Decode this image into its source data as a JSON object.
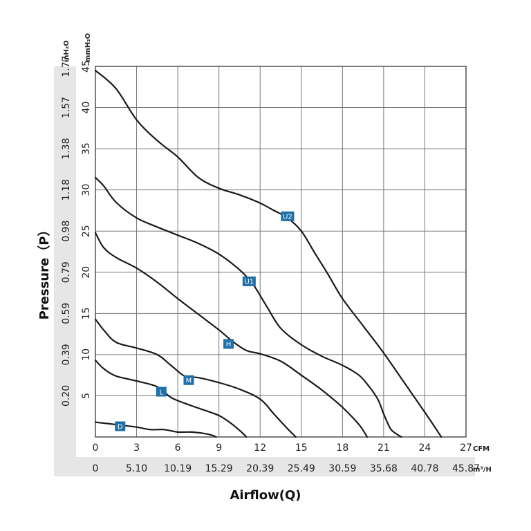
{
  "chart_data": {
    "type": "line",
    "xlabel": "Airflow(Q)",
    "ylabel": "Pressure（P）",
    "x_unit_primary": "CFM",
    "x_unit_secondary": "m³/H",
    "y_unit_primary": "mmH₂O",
    "y_unit_secondary": "inH₂O",
    "xlim": [
      0,
      27
    ],
    "ylim": [
      0,
      45
    ],
    "x_ticks": [
      "0",
      "3",
      "6",
      "9",
      "12",
      "15",
      "18",
      "21",
      "24",
      "27"
    ],
    "x_ticks_secondary": [
      "0",
      "5.10",
      "10.19",
      "15.29",
      "20.39",
      "25.49",
      "30.59",
      "35.68",
      "40.78",
      "45.87"
    ],
    "y_ticks": [
      "5",
      "10",
      "15",
      "20",
      "25",
      "30",
      "35",
      "40",
      "45"
    ],
    "y_ticks_secondary": [
      "0.20",
      "0.39",
      "0.59",
      "0.79",
      "0.98",
      "1.18",
      "1.38",
      "1.57",
      "1.77"
    ],
    "grid": true,
    "colors": {
      "curve": "#1a1a1a",
      "label_bg": "#1f6fa8",
      "band_bg": "#e6e6e6"
    },
    "series": [
      {
        "name": "U2",
        "label_at": [
          14.0,
          26.8
        ],
        "points": [
          [
            0,
            44.5
          ],
          [
            1.5,
            42.3
          ],
          [
            3,
            38.5
          ],
          [
            4.5,
            36.0
          ],
          [
            6,
            34.0
          ],
          [
            7.5,
            31.5
          ],
          [
            9,
            30.2
          ],
          [
            10.5,
            29.4
          ],
          [
            12,
            28.4
          ],
          [
            13,
            27.5
          ],
          [
            14,
            26.6
          ],
          [
            15,
            25.0
          ],
          [
            16,
            22.3
          ],
          [
            17,
            19.6
          ],
          [
            18,
            16.8
          ],
          [
            19.5,
            13.5
          ],
          [
            21,
            10.2
          ],
          [
            22.5,
            6.6
          ],
          [
            24,
            3.0
          ],
          [
            25.2,
            0
          ]
        ]
      },
      {
        "name": "U1",
        "label_at": [
          11.2,
          18.9
        ],
        "points": [
          [
            0,
            31.5
          ],
          [
            0.6,
            30.5
          ],
          [
            1.5,
            28.5
          ],
          [
            3,
            26.6
          ],
          [
            4.5,
            25.5
          ],
          [
            6,
            24.5
          ],
          [
            7.5,
            23.5
          ],
          [
            9,
            22.2
          ],
          [
            10.5,
            20.3
          ],
          [
            11.5,
            18.5
          ],
          [
            12.5,
            15.8
          ],
          [
            13.5,
            13.2
          ],
          [
            15,
            11.2
          ],
          [
            16.5,
            9.8
          ],
          [
            18,
            8.7
          ],
          [
            19.2,
            7.5
          ],
          [
            20,
            6.0
          ],
          [
            20.6,
            4.5
          ],
          [
            21,
            2.8
          ],
          [
            21.5,
            1.0
          ],
          [
            22,
            0.3
          ],
          [
            22.3,
            0
          ]
        ]
      },
      {
        "name": "H",
        "label_at": [
          9.7,
          11.3
        ],
        "points": [
          [
            0,
            24.8
          ],
          [
            0.6,
            23.0
          ],
          [
            1.5,
            21.8
          ],
          [
            3,
            20.5
          ],
          [
            4.5,
            18.8
          ],
          [
            6,
            16.8
          ],
          [
            7.5,
            14.9
          ],
          [
            9,
            13.0
          ],
          [
            10,
            11.6
          ],
          [
            11,
            10.5
          ],
          [
            12,
            10.1
          ],
          [
            13.5,
            9.2
          ],
          [
            15,
            7.5
          ],
          [
            16.5,
            5.7
          ],
          [
            18,
            3.6
          ],
          [
            19.2,
            1.5
          ],
          [
            19.8,
            0
          ]
        ]
      },
      {
        "name": "M",
        "label_at": [
          6.8,
          6.9
        ],
        "points": [
          [
            0,
            14.3
          ],
          [
            0.6,
            13.0
          ],
          [
            1.5,
            11.5
          ],
          [
            3,
            10.8
          ],
          [
            4.5,
            10.0
          ],
          [
            5.5,
            8.7
          ],
          [
            6.5,
            7.4
          ],
          [
            7.5,
            7.2
          ],
          [
            9,
            6.6
          ],
          [
            10.5,
            5.8
          ],
          [
            12,
            4.6
          ],
          [
            13,
            2.8
          ],
          [
            14,
            1.0
          ],
          [
            14.6,
            0
          ]
        ]
      },
      {
        "name": "L",
        "label_at": [
          4.8,
          5.5
        ],
        "points": [
          [
            0,
            9.3
          ],
          [
            0.6,
            8.3
          ],
          [
            1.5,
            7.4
          ],
          [
            3,
            6.8
          ],
          [
            4.5,
            6.1
          ],
          [
            5.5,
            4.8
          ],
          [
            6.5,
            4.1
          ],
          [
            7.5,
            3.5
          ],
          [
            9,
            2.6
          ],
          [
            10,
            1.5
          ],
          [
            10.7,
            0.5
          ],
          [
            11,
            0
          ]
        ]
      },
      {
        "name": "D",
        "label_at": [
          1.8,
          1.3
        ],
        "points": [
          [
            0,
            1.8
          ],
          [
            1,
            1.6
          ],
          [
            2,
            1.4
          ],
          [
            3,
            1.2
          ],
          [
            4,
            0.9
          ],
          [
            5,
            0.9
          ],
          [
            6,
            0.6
          ],
          [
            7,
            0.6
          ],
          [
            8,
            0.4
          ],
          [
            8.5,
            0.2
          ],
          [
            8.8,
            0
          ]
        ]
      }
    ]
  }
}
